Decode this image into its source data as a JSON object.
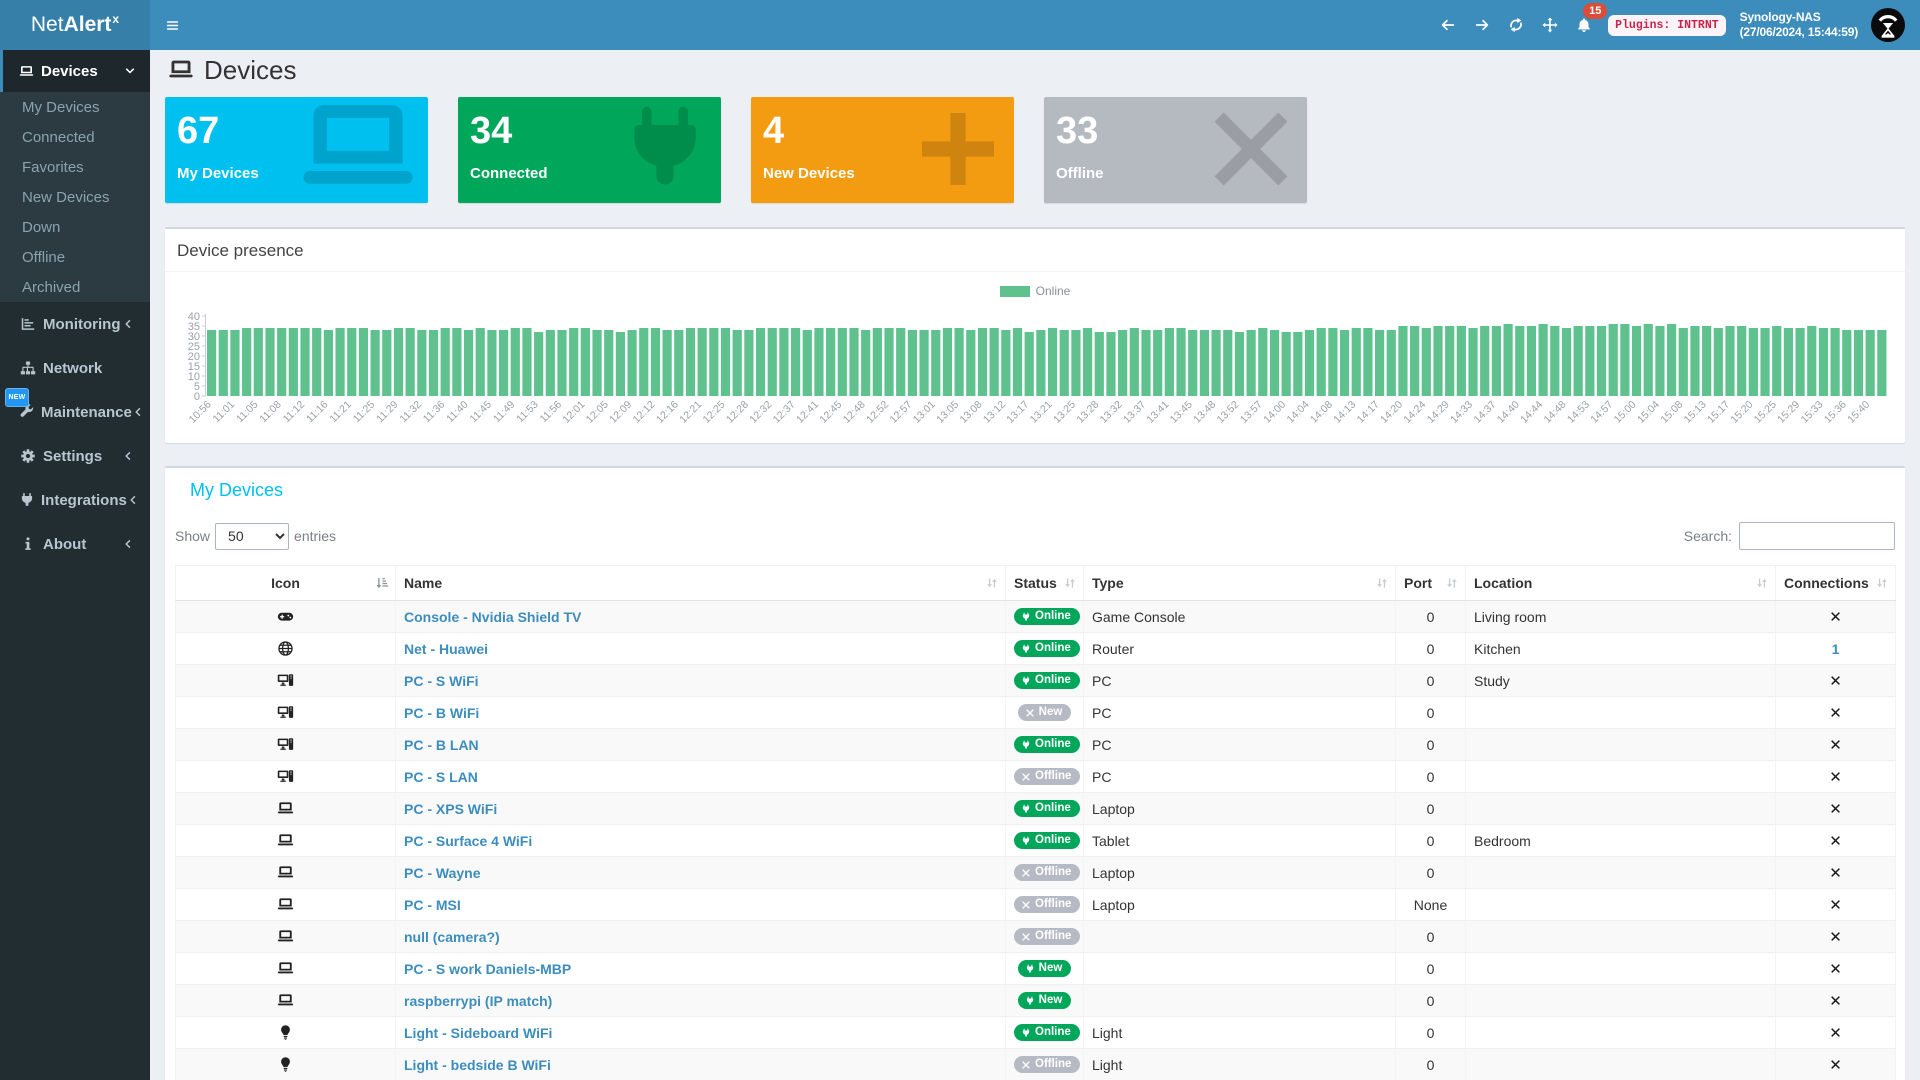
{
  "navbar": {
    "brand": {
      "light": "Net",
      "bold": "Alert",
      "sup": "x"
    },
    "hamburger_icon": "bars-icon",
    "nav_buttons": [
      {
        "icon": "arrow-left-icon",
        "name": "back-button"
      },
      {
        "icon": "arrow-right-icon",
        "name": "forward-button"
      },
      {
        "icon": "refresh-icon",
        "name": "refresh-button"
      },
      {
        "icon": "move-icon",
        "name": "move-button"
      }
    ],
    "bell": {
      "icon": "bell-icon",
      "badge": "15"
    },
    "plugins_badge": "Plugins: INTRNT",
    "host_name": "Synology-NAS",
    "host_time": "(27/06/2024, 15:44:59)",
    "avatar_icon": "netalertx-logo"
  },
  "sidebar": {
    "devices_group": {
      "label": "Devices",
      "icon": "laptop-icon",
      "chevron": "chevron-down-icon",
      "children": [
        "My Devices",
        "Connected",
        "Favorites",
        "New Devices",
        "Down",
        "Offline",
        "Archived"
      ]
    },
    "items": [
      {
        "label": "Monitoring",
        "icon": "chart-bar-icon",
        "chevron": "chevron-left-icon"
      },
      {
        "label": "Network",
        "icon": "sitemap-icon",
        "chevron": ""
      },
      {
        "label": "Maintenance",
        "icon": "wrench-icon",
        "chevron": "chevron-left-icon"
      },
      {
        "label": "Settings",
        "icon": "gear-icon",
        "chevron": "chevron-left-icon"
      },
      {
        "label": "Integrations",
        "icon": "plug-icon",
        "chevron": "chevron-left-icon"
      },
      {
        "label": "About",
        "icon": "info-icon",
        "chevron": "chevron-left-icon"
      }
    ],
    "new_badge": "NEW"
  },
  "page": {
    "title": "Devices",
    "icon": "laptop-icon"
  },
  "summary_boxes": [
    {
      "value": "67",
      "label": "My Devices",
      "color": "#00c0ef",
      "icon": "laptop-icon"
    },
    {
      "value": "34",
      "label": "Connected",
      "color": "#00a65a",
      "icon": "plug-icon"
    },
    {
      "value": "4",
      "label": "New Devices",
      "color": "#f39c12",
      "icon": "plus-icon"
    },
    {
      "value": "33",
      "label": "Offline",
      "color": "#b5bac1",
      "icon": "times-icon"
    }
  ],
  "presence_chart": {
    "title": "Device presence",
    "legend": "Online",
    "bar_color": "#5fc28e",
    "chart_data": {
      "type": "bar",
      "title": "Device presence",
      "ylim": [
        0,
        40
      ],
      "yticks": [
        0,
        5,
        10,
        15,
        20,
        25,
        30,
        35,
        40
      ],
      "legend_entries": [
        "Online"
      ],
      "legend_position": "top-center",
      "grid": false,
      "x_tick_labels": [
        "10:56",
        "11:01",
        "11:05",
        "11:08",
        "11:12",
        "11:16",
        "11:21",
        "11:25",
        "11:29",
        "11:32",
        "11:36",
        "11:40",
        "11:45",
        "11:49",
        "11:53",
        "11:56",
        "12:01",
        "12:05",
        "12:09",
        "12:12",
        "12:16",
        "12:21",
        "12:25",
        "12:28",
        "12:32",
        "12:37",
        "12:41",
        "12:45",
        "12:48",
        "12:52",
        "12:57",
        "13:01",
        "13:05",
        "13:08",
        "13:12",
        "13:17",
        "13:21",
        "13:25",
        "13:28",
        "13:32",
        "13:37",
        "13:41",
        "13:45",
        "13:48",
        "13:52",
        "13:57",
        "14:00",
        "14:04",
        "14:08",
        "14:13",
        "14:17",
        "14:20",
        "14:24",
        "14:29",
        "14:33",
        "14:37",
        "14:40",
        "14:44",
        "14:48",
        "14:53",
        "14:57",
        "15:00",
        "15:04",
        "15:08",
        "15:13",
        "15:17",
        "15:20",
        "15:25",
        "15:29",
        "15:33",
        "15:36",
        "15:40"
      ],
      "bars_per_label": 2,
      "series": [
        {
          "name": "Online",
          "values": [
            33,
            33,
            33,
            34,
            34,
            34,
            34,
            34,
            34,
            34,
            33,
            34,
            34,
            34,
            33,
            33,
            34,
            34,
            33,
            33,
            34,
            34,
            33,
            34,
            33,
            33,
            34,
            34,
            32,
            33,
            33,
            34,
            34,
            33,
            33,
            32,
            33,
            34,
            34,
            33,
            33,
            34,
            34,
            34,
            34,
            33,
            33,
            34,
            34,
            34,
            34,
            33,
            34,
            34,
            34,
            34,
            33,
            34,
            34,
            34,
            33,
            33,
            33,
            34,
            34,
            33,
            34,
            34,
            33,
            34,
            32,
            33,
            34,
            33,
            33,
            34,
            32,
            32,
            33,
            34,
            33,
            33,
            34,
            34,
            33,
            33,
            33,
            33,
            32,
            33,
            34,
            33,
            32,
            32,
            33,
            34,
            34,
            33,
            34,
            34,
            33,
            33,
            35,
            35,
            34,
            35,
            35,
            35,
            34,
            35,
            35,
            36,
            35,
            35,
            36,
            35,
            34,
            35,
            35,
            35,
            36,
            36,
            35,
            36,
            35,
            36,
            34,
            35,
            35,
            34,
            35,
            35,
            34,
            34,
            35,
            34,
            34,
            35,
            34,
            34,
            33,
            33,
            33,
            33
          ]
        }
      ]
    }
  },
  "devices_table": {
    "title": "My Devices",
    "show_label": "Show",
    "entries_label": "entries",
    "page_length": "50",
    "search_label": "Search:",
    "search_value": "",
    "columns": [
      {
        "label": "Icon",
        "align": "center",
        "sort": "sort-amount-asc-icon",
        "active": true
      },
      {
        "label": "Name",
        "align": "left",
        "sort": "sort-icon",
        "active": false
      },
      {
        "label": "Status",
        "align": "left",
        "sort": "sort-icon",
        "active": false
      },
      {
        "label": "Type",
        "align": "left",
        "sort": "sort-icon",
        "active": false
      },
      {
        "label": "Port",
        "align": "left",
        "sort": "sort-icon",
        "active": false
      },
      {
        "label": "Location",
        "align": "left",
        "sort": "sort-icon",
        "active": false
      },
      {
        "label": "Connections",
        "align": "left",
        "sort": "sort-icon",
        "active": false
      }
    ],
    "rows": [
      {
        "icon": "gamepad-icon",
        "name": "Console - Nvidia Shield TV",
        "status": "Online",
        "status_color": "green",
        "status_icon": "plug-icon",
        "type": "Game Console",
        "port": "0",
        "location": "Living room",
        "connections": "x"
      },
      {
        "icon": "globe-icon",
        "name": "Net - Huawei",
        "status": "Online",
        "status_color": "green",
        "status_icon": "plug-icon",
        "type": "Router",
        "port": "0",
        "location": "Kitchen",
        "connections": "1"
      },
      {
        "icon": "desktop-icon",
        "name": "PC - S WiFi",
        "status": "Online",
        "status_color": "green",
        "status_icon": "plug-icon",
        "type": "PC",
        "port": "0",
        "location": "Study",
        "connections": "x"
      },
      {
        "icon": "desktop-icon",
        "name": "PC - B WiFi",
        "status": "New",
        "status_color": "gray",
        "status_icon": "times-icon",
        "type": "PC",
        "port": "0",
        "location": "",
        "connections": "x"
      },
      {
        "icon": "desktop-icon",
        "name": "PC - B LAN",
        "status": "Online",
        "status_color": "green",
        "status_icon": "plug-icon",
        "type": "PC",
        "port": "0",
        "location": "",
        "connections": "x"
      },
      {
        "icon": "desktop-icon",
        "name": "PC - S LAN",
        "status": "Offline",
        "status_color": "gray",
        "status_icon": "times-icon",
        "type": "PC",
        "port": "0",
        "location": "",
        "connections": "x"
      },
      {
        "icon": "laptop-icon",
        "name": "PC - XPS WiFi",
        "status": "Online",
        "status_color": "green",
        "status_icon": "plug-icon",
        "type": "Laptop",
        "port": "0",
        "location": "",
        "connections": "x"
      },
      {
        "icon": "laptop-icon",
        "name": "PC - Surface 4 WiFi",
        "status": "Online",
        "status_color": "green",
        "status_icon": "plug-icon",
        "type": "Tablet",
        "port": "0",
        "location": "Bedroom",
        "connections": "x"
      },
      {
        "icon": "laptop-icon",
        "name": "PC - Wayne",
        "status": "Offline",
        "status_color": "gray",
        "status_icon": "times-icon",
        "type": "Laptop",
        "port": "0",
        "location": "",
        "connections": "x"
      },
      {
        "icon": "laptop-icon",
        "name": "PC - MSI",
        "status": "Offline",
        "status_color": "gray",
        "status_icon": "times-icon",
        "type": "Laptop",
        "port": "None",
        "location": "",
        "connections": "x"
      },
      {
        "icon": "laptop-icon",
        "name": "null (camera?)",
        "status": "Offline",
        "status_color": "gray",
        "status_icon": "times-icon",
        "type": "",
        "port": "0",
        "location": "",
        "connections": "x"
      },
      {
        "icon": "laptop-icon",
        "name": "PC - S work Daniels-MBP",
        "status": "New",
        "status_color": "green",
        "status_icon": "plug-icon",
        "type": "",
        "port": "0",
        "location": "",
        "connections": "x"
      },
      {
        "icon": "laptop-icon",
        "name": "raspberrypi (IP match)",
        "status": "New",
        "status_color": "green",
        "status_icon": "plug-icon",
        "type": "",
        "port": "0",
        "location": "",
        "connections": "x"
      },
      {
        "icon": "lightbulb-icon",
        "name": "Light - Sideboard WiFi",
        "status": "Online",
        "status_color": "green",
        "status_icon": "plug-icon",
        "type": "Light",
        "port": "0",
        "location": "",
        "connections": "x"
      },
      {
        "icon": "lightbulb-icon",
        "name": "Light - bedside B WiFi",
        "status": "Offline",
        "status_color": "gray",
        "status_icon": "times-icon",
        "type": "Light",
        "port": "0",
        "location": "",
        "connections": "x"
      }
    ]
  }
}
